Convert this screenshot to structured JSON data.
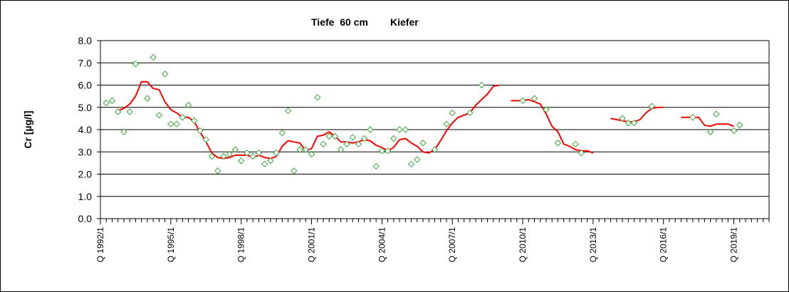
{
  "chart_data": {
    "type": "line",
    "title_parts": [
      "Tiefe  60 cm",
      "Kiefer"
    ],
    "xlabel": "",
    "ylabel": "Cr [µg/l]",
    "ylim": [
      0,
      8
    ],
    "yticks": [
      "0.0",
      "1.0",
      "2.0",
      "3.0",
      "4.0",
      "5.0",
      "6.0",
      "7.0",
      "8.0"
    ],
    "x_axis": {
      "start": "Q 1992/1",
      "end": "Q 2020/2",
      "unit": "quarter"
    },
    "xtick_labels": [
      {
        "label": "Q 1992/1",
        "q": 0
      },
      {
        "label": "Q 1995/1",
        "q": 12
      },
      {
        "label": "Q 1998/1",
        "q": 24
      },
      {
        "label": "Q 2001/1",
        "q": 36
      },
      {
        "label": "Q 2004/1",
        "q": 48
      },
      {
        "label": "Q 2007/1",
        "q": 60
      },
      {
        "label": "Q 2010/1",
        "q": 72
      },
      {
        "label": "Q 2013/1",
        "q": 84
      },
      {
        "label": "Q 2016/1",
        "q": 96
      },
      {
        "label": "Q 2019/1",
        "q": 108
      }
    ],
    "grid": "horizontal",
    "series": [
      {
        "kind": "points",
        "marker": "diamond",
        "color": "#3aa83a",
        "points": [
          {
            "q": 1,
            "y": 5.2
          },
          {
            "q": 2,
            "y": 5.3
          },
          {
            "q": 3,
            "y": 4.8
          },
          {
            "q": 4,
            "y": 3.9
          },
          {
            "q": 5,
            "y": 4.8
          },
          {
            "q": 6,
            "y": 6.95
          },
          {
            "q": 8,
            "y": 5.4
          },
          {
            "q": 9,
            "y": 7.25
          },
          {
            "q": 10,
            "y": 4.65
          },
          {
            "q": 11,
            "y": 6.5
          },
          {
            "q": 12,
            "y": 4.25
          },
          {
            "q": 13,
            "y": 4.25
          },
          {
            "q": 14,
            "y": 4.55
          },
          {
            "q": 15,
            "y": 5.1
          },
          {
            "q": 16,
            "y": 4.4
          },
          {
            "q": 17,
            "y": 3.95
          },
          {
            "q": 18,
            "y": 3.55
          },
          {
            "q": 19,
            "y": 2.8
          },
          {
            "q": 20,
            "y": 2.15
          },
          {
            "q": 21,
            "y": 2.8
          },
          {
            "q": 22,
            "y": 2.9
          },
          {
            "q": 23,
            "y": 3.1
          },
          {
            "q": 24,
            "y": 2.6
          },
          {
            "q": 25,
            "y": 2.95
          },
          {
            "q": 26,
            "y": 2.8
          },
          {
            "q": 27,
            "y": 2.95
          },
          {
            "q": 28,
            "y": 2.45
          },
          {
            "q": 29,
            "y": 2.6
          },
          {
            "q": 30,
            "y": 2.95
          },
          {
            "q": 31,
            "y": 3.85
          },
          {
            "q": 32,
            "y": 4.85
          },
          {
            "q": 33,
            "y": 2.15
          },
          {
            "q": 34,
            "y": 3.1
          },
          {
            "q": 35,
            "y": 3.1
          },
          {
            "q": 36,
            "y": 2.9
          },
          {
            "q": 37,
            "y": 5.45
          },
          {
            "q": 38,
            "y": 3.35
          },
          {
            "q": 39,
            "y": 3.7
          },
          {
            "q": 40,
            "y": 3.7
          },
          {
            "q": 41,
            "y": 3.1
          },
          {
            "q": 42,
            "y": 3.35
          },
          {
            "q": 43,
            "y": 3.65
          },
          {
            "q": 44,
            "y": 3.35
          },
          {
            "q": 45,
            "y": 3.6
          },
          {
            "q": 46,
            "y": 4.0
          },
          {
            "q": 47,
            "y": 2.35
          },
          {
            "q": 48,
            "y": 3.05
          },
          {
            "q": 49,
            "y": 3.05
          },
          {
            "q": 50,
            "y": 3.6
          },
          {
            "q": 51,
            "y": 4.0
          },
          {
            "q": 52,
            "y": 4.0
          },
          {
            "q": 53,
            "y": 2.45
          },
          {
            "q": 54,
            "y": 2.65
          },
          {
            "q": 55,
            "y": 3.4
          },
          {
            "q": 57,
            "y": 3.1
          },
          {
            "q": 59,
            "y": 4.25
          },
          {
            "q": 60,
            "y": 4.75
          },
          {
            "q": 63,
            "y": 4.75
          },
          {
            "q": 65,
            "y": 6.0
          },
          {
            "q": 72,
            "y": 5.3
          },
          {
            "q": 74,
            "y": 5.4
          },
          {
            "q": 76,
            "y": 4.9
          },
          {
            "q": 78,
            "y": 3.4
          },
          {
            "q": 81,
            "y": 3.35
          },
          {
            "q": 82,
            "y": 2.95
          },
          {
            "q": 89,
            "y": 4.5
          },
          {
            "q": 90,
            "y": 4.3
          },
          {
            "q": 91,
            "y": 4.3
          },
          {
            "q": 94,
            "y": 5.05
          },
          {
            "q": 101,
            "y": 4.55
          },
          {
            "q": 104,
            "y": 3.9
          },
          {
            "q": 105,
            "y": 4.7
          },
          {
            "q": 108,
            "y": 3.95
          },
          {
            "q": 109,
            "y": 4.2
          }
        ]
      },
      {
        "kind": "line",
        "color": "#ff0000",
        "segments": [
          [
            {
              "q": 3,
              "y": 4.85
            },
            {
              "q": 4,
              "y": 4.95
            },
            {
              "q": 5,
              "y": 5.15
            },
            {
              "q": 6,
              "y": 5.5
            },
            {
              "q": 7,
              "y": 6.15
            },
            {
              "q": 8,
              "y": 6.15
            },
            {
              "q": 9,
              "y": 5.85
            },
            {
              "q": 10,
              "y": 5.8
            },
            {
              "q": 11,
              "y": 5.25
            },
            {
              "q": 12,
              "y": 4.9
            },
            {
              "q": 13,
              "y": 4.75
            },
            {
              "q": 14,
              "y": 4.55
            },
            {
              "q": 15,
              "y": 4.55
            },
            {
              "q": 16,
              "y": 4.35
            },
            {
              "q": 17,
              "y": 3.9
            },
            {
              "q": 18,
              "y": 3.45
            },
            {
              "q": 19,
              "y": 2.95
            },
            {
              "q": 20,
              "y": 2.75
            },
            {
              "q": 21,
              "y": 2.7
            },
            {
              "q": 22,
              "y": 2.75
            },
            {
              "q": 23,
              "y": 2.85
            },
            {
              "q": 24,
              "y": 2.85
            },
            {
              "q": 25,
              "y": 2.85
            },
            {
              "q": 26,
              "y": 2.75
            },
            {
              "q": 27,
              "y": 2.85
            },
            {
              "q": 28,
              "y": 2.75
            },
            {
              "q": 29,
              "y": 2.7
            },
            {
              "q": 30,
              "y": 2.8
            },
            {
              "q": 31,
              "y": 3.25
            },
            {
              "q": 32,
              "y": 3.5
            },
            {
              "q": 33,
              "y": 3.45
            },
            {
              "q": 34,
              "y": 3.4
            },
            {
              "q": 35,
              "y": 3.05
            },
            {
              "q": 36,
              "y": 3.15
            },
            {
              "q": 37,
              "y": 3.7
            },
            {
              "q": 38,
              "y": 3.75
            },
            {
              "q": 39,
              "y": 3.9
            },
            {
              "q": 40,
              "y": 3.7
            },
            {
              "q": 41,
              "y": 3.45
            },
            {
              "q": 42,
              "y": 3.45
            },
            {
              "q": 43,
              "y": 3.4
            },
            {
              "q": 44,
              "y": 3.45
            },
            {
              "q": 45,
              "y": 3.55
            },
            {
              "q": 46,
              "y": 3.5
            },
            {
              "q": 47,
              "y": 3.3
            },
            {
              "q": 48,
              "y": 3.2
            },
            {
              "q": 49,
              "y": 3.05
            },
            {
              "q": 50,
              "y": 3.2
            },
            {
              "q": 51,
              "y": 3.55
            },
            {
              "q": 52,
              "y": 3.6
            },
            {
              "q": 53,
              "y": 3.4
            },
            {
              "q": 54,
              "y": 3.25
            },
            {
              "q": 55,
              "y": 3.0
            },
            {
              "q": 56,
              "y": 2.95
            },
            {
              "q": 57,
              "y": 3.1
            },
            {
              "q": 58,
              "y": 3.5
            },
            {
              "q": 59,
              "y": 3.95
            },
            {
              "q": 60,
              "y": 4.3
            },
            {
              "q": 61,
              "y": 4.55
            },
            {
              "q": 62,
              "y": 4.65
            },
            {
              "q": 63,
              "y": 4.75
            },
            {
              "q": 64,
              "y": 5.1
            },
            {
              "q": 65,
              "y": 5.35
            },
            {
              "q": 66,
              "y": 5.6
            },
            {
              "q": 67,
              "y": 5.95
            },
            {
              "q": 68,
              "y": 6.0
            }
          ],
          [
            {
              "q": 70,
              "y": 5.3
            },
            {
              "q": 71,
              "y": 5.3
            },
            {
              "q": 72,
              "y": 5.3
            },
            {
              "q": 73,
              "y": 5.35
            },
            {
              "q": 74,
              "y": 5.25
            },
            {
              "q": 75,
              "y": 5.15
            },
            {
              "q": 76,
              "y": 4.7
            },
            {
              "q": 77,
              "y": 4.15
            },
            {
              "q": 78,
              "y": 3.9
            },
            {
              "q": 79,
              "y": 3.35
            },
            {
              "q": 80,
              "y": 3.25
            },
            {
              "q": 81,
              "y": 3.1
            },
            {
              "q": 82,
              "y": 3.05
            },
            {
              "q": 83,
              "y": 3.05
            },
            {
              "q": 84,
              "y": 2.95
            }
          ],
          [
            {
              "q": 87,
              "y": 4.5
            },
            {
              "q": 88,
              "y": 4.45
            },
            {
              "q": 89,
              "y": 4.4
            },
            {
              "q": 90,
              "y": 4.35
            },
            {
              "q": 91,
              "y": 4.35
            },
            {
              "q": 92,
              "y": 4.45
            },
            {
              "q": 93,
              "y": 4.75
            },
            {
              "q": 94,
              "y": 4.95
            },
            {
              "q": 95,
              "y": 5.0
            },
            {
              "q": 96,
              "y": 5.0
            }
          ],
          [
            {
              "q": 99,
              "y": 4.55
            },
            {
              "q": 100,
              "y": 4.55
            },
            {
              "q": 101,
              "y": 4.55
            },
            {
              "q": 102,
              "y": 4.55
            },
            {
              "q": 103,
              "y": 4.2
            },
            {
              "q": 104,
              "y": 4.15
            },
            {
              "q": 105,
              "y": 4.25
            },
            {
              "q": 106,
              "y": 4.25
            },
            {
              "q": 107,
              "y": 4.25
            },
            {
              "q": 108,
              "y": 4.15
            }
          ]
        ]
      }
    ]
  }
}
